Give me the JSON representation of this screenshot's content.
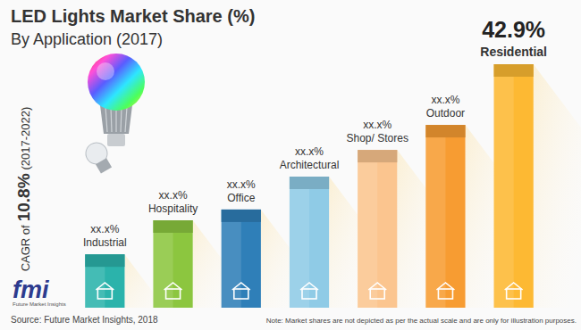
{
  "chart_data": {
    "type": "bar",
    "title": "LED Lights Market Share (%)",
    "subtitle": "By Application (2017)",
    "annotation": [
      "CAGR of",
      "10.8%",
      "(2017-2022)"
    ],
    "categories": [
      "Industrial",
      "Hospitality",
      "Office",
      "Architectural",
      "Shop/ Stores",
      "Outdoor",
      "Residential"
    ],
    "values": [
      9.4,
      15.4,
      17.3,
      23.1,
      27.8,
      32.2,
      42.9
    ],
    "value_labels": [
      "xx.x%",
      "xx.x%",
      "xx.x%",
      "xx.x%",
      "xx.x%",
      "xx.x%",
      "42.9%"
    ],
    "colors": [
      "#2bb3ab",
      "#8cc63f",
      "#2f7fb8",
      "#8fcbe6",
      "#fbc58f",
      "#f79c32",
      "#fdb933"
    ],
    "data_labels": true,
    "tick_labels": false,
    "source": "Source: Future Market Insights, 2018",
    "note": "Note: Market shares are not depicted as per the actual scale and are only for illustration purposes.",
    "logo": {
      "text": "fmi",
      "caption": "Future Market Insights"
    }
  }
}
